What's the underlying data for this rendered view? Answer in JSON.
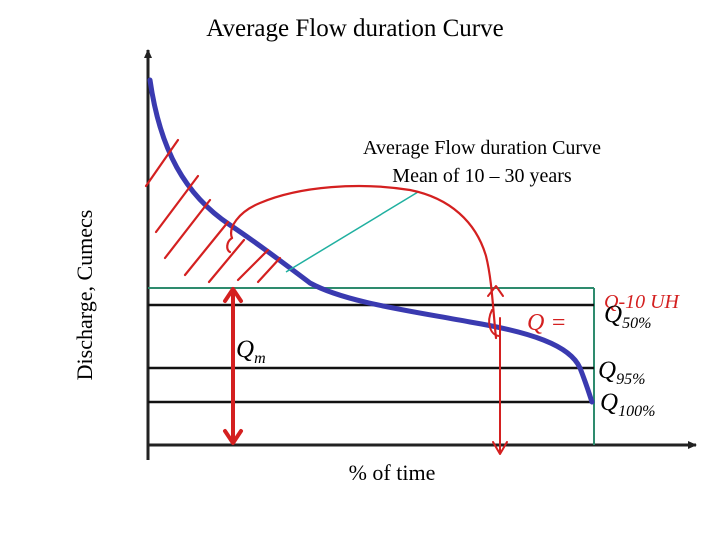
{
  "title": "Average Flow duration Curve",
  "ylabel": "Discharge, Cumecs",
  "xlabel": "% of time",
  "callout": {
    "line1": "Average Flow duration Curve",
    "line2": "Mean of 10 – 30 years"
  },
  "qm": {
    "base": "Q",
    "sub": "m"
  },
  "q50": {
    "base": "Q",
    "sub": "50%"
  },
  "q95": {
    "base": "Q",
    "sub": "95%"
  },
  "q100": {
    "base": "Q",
    "sub": "100%"
  },
  "handwriting": {
    "near_q50_left": "Q =",
    "near_q50_right": "Q-10 UH"
  },
  "colors": {
    "curve": "#3a3ab0",
    "annotation": "#d42020",
    "leader": "#20b0a0",
    "box": "#2e8b6e",
    "axes": "#222222"
  }
}
